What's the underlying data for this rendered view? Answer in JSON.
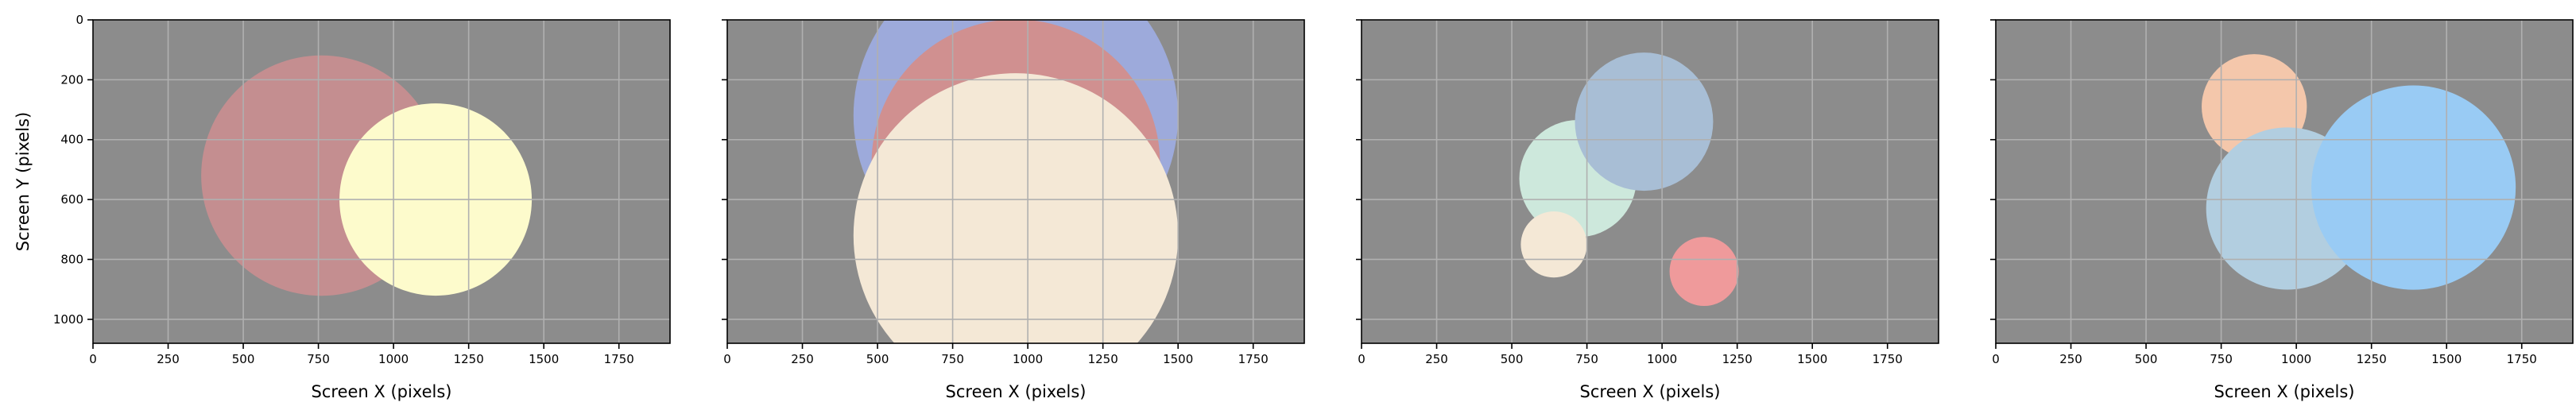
{
  "chart_data": [
    {
      "type": "scatter",
      "xlabel": "Screen X (pixels)",
      "ylabel": "Screen Y (pixels)",
      "xlim": [
        0,
        1920
      ],
      "ylim": [
        1080,
        0
      ],
      "xticks": [
        0,
        250,
        500,
        750,
        1000,
        1250,
        1500,
        1750
      ],
      "yticks": [
        0,
        200,
        400,
        600,
        800,
        1000
      ],
      "show_ytick_labels": true,
      "grid": true,
      "background": "#8c8c8c",
      "circles": [
        {
          "x": 760,
          "y": 520,
          "r": 400,
          "color": "#c48e90"
        },
        {
          "x": 1140,
          "y": 600,
          "r": 320,
          "color": "#fdfbcc"
        }
      ]
    },
    {
      "type": "scatter",
      "xlabel": "Screen X (pixels)",
      "ylabel": "",
      "xlim": [
        0,
        1920
      ],
      "ylim": [
        1080,
        0
      ],
      "xticks": [
        0,
        250,
        500,
        750,
        1000,
        1250,
        1500,
        1750
      ],
      "yticks": [
        0,
        200,
        400,
        600,
        800,
        1000
      ],
      "show_ytick_labels": false,
      "grid": true,
      "background": "#8c8c8c",
      "circles": [
        {
          "x": 960,
          "y": 320,
          "r": 540,
          "color": "#9daadb"
        },
        {
          "x": 960,
          "y": 480,
          "r": 480,
          "color": "#d09090"
        },
        {
          "x": 960,
          "y": 720,
          "r": 540,
          "color": "#f4e8d6"
        }
      ]
    },
    {
      "type": "scatter",
      "xlabel": "Screen X (pixels)",
      "ylabel": "",
      "xlim": [
        0,
        1920
      ],
      "ylim": [
        1080,
        0
      ],
      "xticks": [
        0,
        250,
        500,
        750,
        1000,
        1250,
        1500,
        1750
      ],
      "yticks": [
        0,
        200,
        400,
        600,
        800,
        1000
      ],
      "show_ytick_labels": false,
      "grid": true,
      "background": "#8c8c8c",
      "circles": [
        {
          "x": 720,
          "y": 530,
          "r": 195,
          "color": "#cde8dc"
        },
        {
          "x": 940,
          "y": 340,
          "r": 230,
          "color": "#a8bed5"
        },
        {
          "x": 640,
          "y": 750,
          "r": 110,
          "color": "#f4e8d6"
        },
        {
          "x": 1140,
          "y": 840,
          "r": 115,
          "color": "#ef9a9b"
        }
      ]
    },
    {
      "type": "scatter",
      "xlabel": "Screen X (pixels)",
      "ylabel": "",
      "xlim": [
        0,
        1920
      ],
      "ylim": [
        1080,
        0
      ],
      "xticks": [
        0,
        250,
        500,
        750,
        1000,
        1250,
        1500,
        1750
      ],
      "yticks": [
        0,
        200,
        400,
        600,
        800,
        1000
      ],
      "show_ytick_labels": false,
      "grid": true,
      "background": "#8c8c8c",
      "circles": [
        {
          "x": 860,
          "y": 290,
          "r": 175,
          "color": "#f4c7ab"
        },
        {
          "x": 970,
          "y": 630,
          "r": 270,
          "color": "#b2cee0"
        },
        {
          "x": 1390,
          "y": 560,
          "r": 340,
          "color": "#99cbf4"
        }
      ]
    }
  ]
}
